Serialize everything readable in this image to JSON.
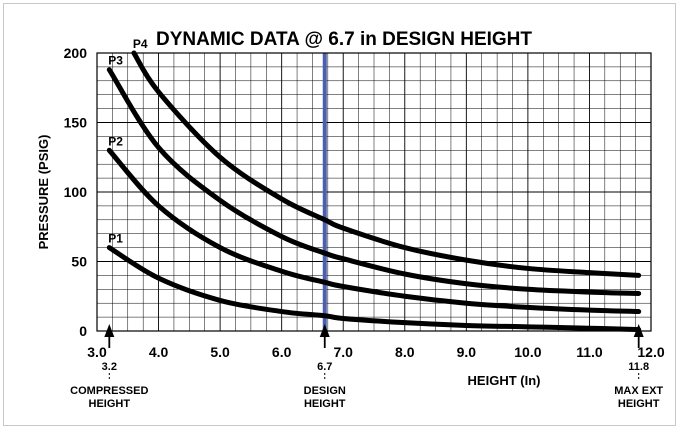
{
  "chart_data": {
    "type": "line",
    "title": "DYNAMIC DATA @ 6.7 in DESIGN HEIGHT",
    "xlabel": "HEIGHT (In)",
    "ylabel": "PRESSURE (PSIG)",
    "xlim": [
      3.0,
      12.0
    ],
    "ylim": [
      0,
      200
    ],
    "x_ticks": [
      "3.0",
      "4.0",
      "5.0",
      "6.0",
      "7.0",
      "8.0",
      "9.0",
      "10.0",
      "11.0",
      "12.0"
    ],
    "y_ticks": [
      "0",
      "50",
      "100",
      "150",
      "200"
    ],
    "grid": true,
    "series": [
      {
        "name": "P1",
        "x": [
          3.2,
          4.0,
          5.0,
          6.0,
          6.7,
          7.0,
          8.0,
          9.0,
          10.0,
          11.0,
          11.8
        ],
        "y": [
          60,
          38,
          22,
          14,
          11,
          9,
          6,
          4,
          3,
          2,
          1
        ]
      },
      {
        "name": "P2",
        "x": [
          3.2,
          4.0,
          5.0,
          6.0,
          6.7,
          7.0,
          8.0,
          9.0,
          10.0,
          11.0,
          11.8
        ],
        "y": [
          130,
          90,
          60,
          43,
          35,
          32,
          25,
          20,
          17,
          15,
          14
        ]
      },
      {
        "name": "P3",
        "x": [
          3.2,
          4.0,
          5.0,
          6.0,
          6.7,
          7.0,
          8.0,
          9.0,
          10.0,
          11.0,
          11.8
        ],
        "y": [
          188,
          132,
          94,
          68,
          56,
          52,
          41,
          34,
          30,
          28,
          27
        ]
      },
      {
        "name": "P4",
        "x": [
          3.6,
          4.0,
          5.0,
          6.0,
          6.7,
          7.0,
          8.0,
          9.0,
          10.0,
          11.0,
          11.8
        ],
        "y": [
          200,
          172,
          125,
          95,
          80,
          74,
          60,
          51,
          45,
          42,
          40
        ]
      }
    ],
    "design_line": {
      "x": 6.7,
      "color": "#4a5fb0"
    },
    "markers": [
      {
        "x": 3.2,
        "value_label": "3.2",
        "text": [
          "COMPRESSED",
          "HEIGHT"
        ]
      },
      {
        "x": 6.7,
        "value_label": "6.7",
        "text": [
          "DESIGN",
          "HEIGHT"
        ]
      },
      {
        "x": 11.8,
        "value_label": "11.8",
        "text": [
          "MAX EXT",
          "HEIGHT"
        ]
      }
    ]
  }
}
